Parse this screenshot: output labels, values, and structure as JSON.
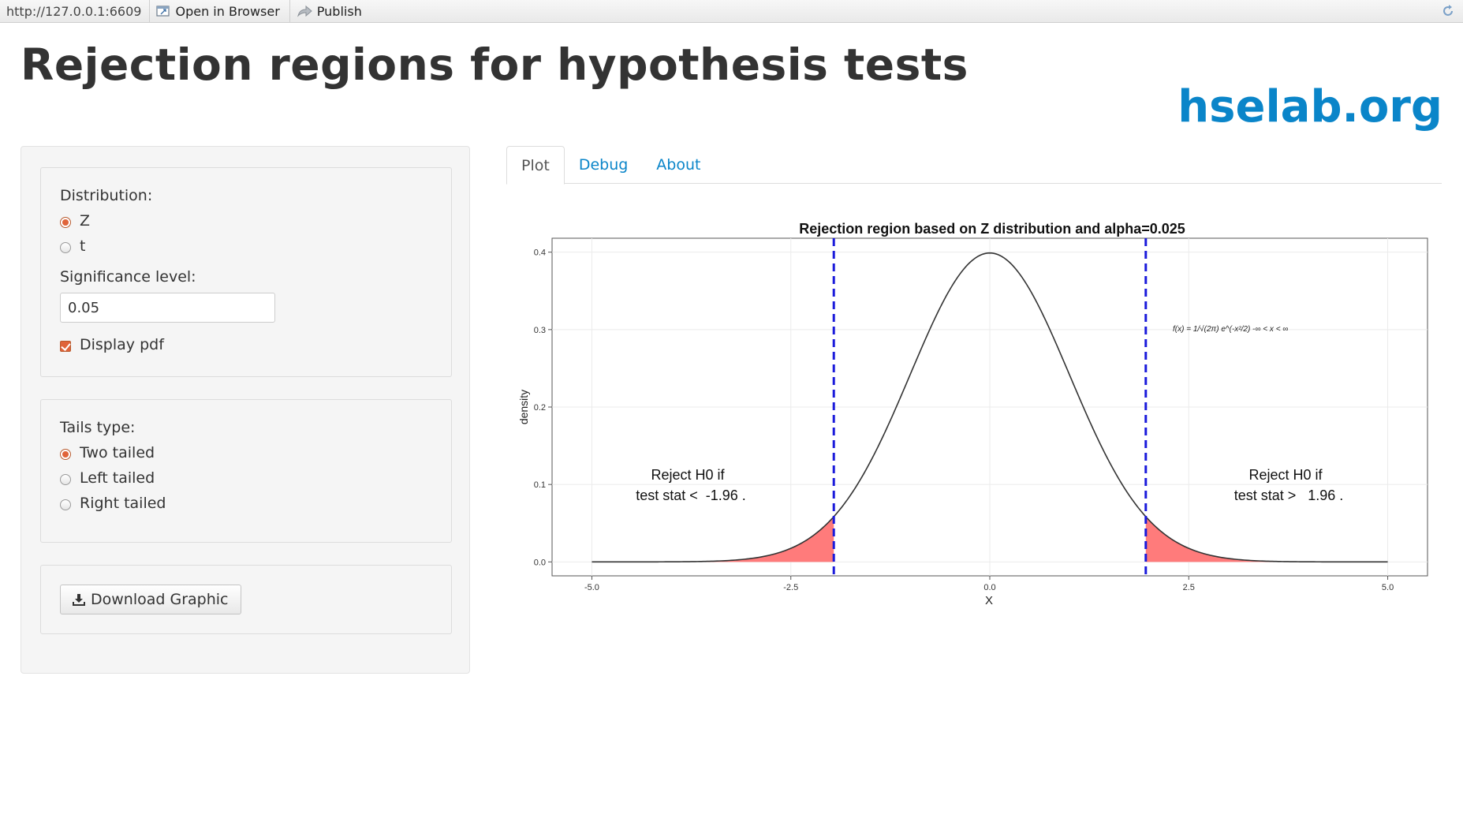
{
  "toolbar": {
    "url": "http://127.0.0.1:6609",
    "open_in_browser": "Open in Browser",
    "publish": "Publish"
  },
  "header": {
    "title": "Rejection regions for hypothesis tests",
    "brand": "hselab.org"
  },
  "sidebar": {
    "distribution_label": "Distribution:",
    "distribution_options": [
      {
        "label": "Z",
        "selected": true
      },
      {
        "label": "t",
        "selected": false
      }
    ],
    "significance_label": "Significance level:",
    "significance_value": "0.05",
    "display_pdf_label": "Display pdf",
    "display_pdf_checked": true,
    "tails_label": "Tails type:",
    "tails_options": [
      {
        "label": "Two tailed",
        "selected": true
      },
      {
        "label": "Left tailed",
        "selected": false
      },
      {
        "label": "Right tailed",
        "selected": false
      }
    ],
    "download_label": "Download Graphic"
  },
  "tabs": [
    {
      "label": "Plot",
      "active": true
    },
    {
      "label": "Debug",
      "active": false
    },
    {
      "label": "About",
      "active": false
    }
  ],
  "chart_data": {
    "type": "line",
    "title": "Rejection region based on Z distribution and alpha=0.025",
    "xlabel": "X",
    "ylabel": "density",
    "xlim": [
      -5.0,
      5.0
    ],
    "ylim": [
      0.0,
      0.4
    ],
    "x_ticks": [
      "-5.0",
      "-2.5",
      "0.0",
      "2.5",
      "5.0"
    ],
    "x_tick_values": [
      -5.0,
      -2.5,
      0.0,
      2.5,
      5.0
    ],
    "y_ticks": [
      "0.0",
      "0.1",
      "0.2",
      "0.3",
      "0.4"
    ],
    "y_tick_values": [
      0.0,
      0.1,
      0.2,
      0.3,
      0.4
    ],
    "curve": "standard normal pdf",
    "critical_values": [
      -1.96,
      1.96
    ],
    "grid": true,
    "annotations": {
      "left_line1": "Reject H0 if",
      "left_line2": "test stat <  -1.96 .",
      "right_line1": "Reject H0 if",
      "right_line2": "test stat >   1.96 .",
      "formula": "f(x) = 1/√(2π) e^(-x²/2)   -∞ < x < ∞"
    },
    "colors": {
      "curve": "#333333",
      "critical_line": "#1a1adb",
      "rejection_fill": "#ff7b7b"
    }
  }
}
